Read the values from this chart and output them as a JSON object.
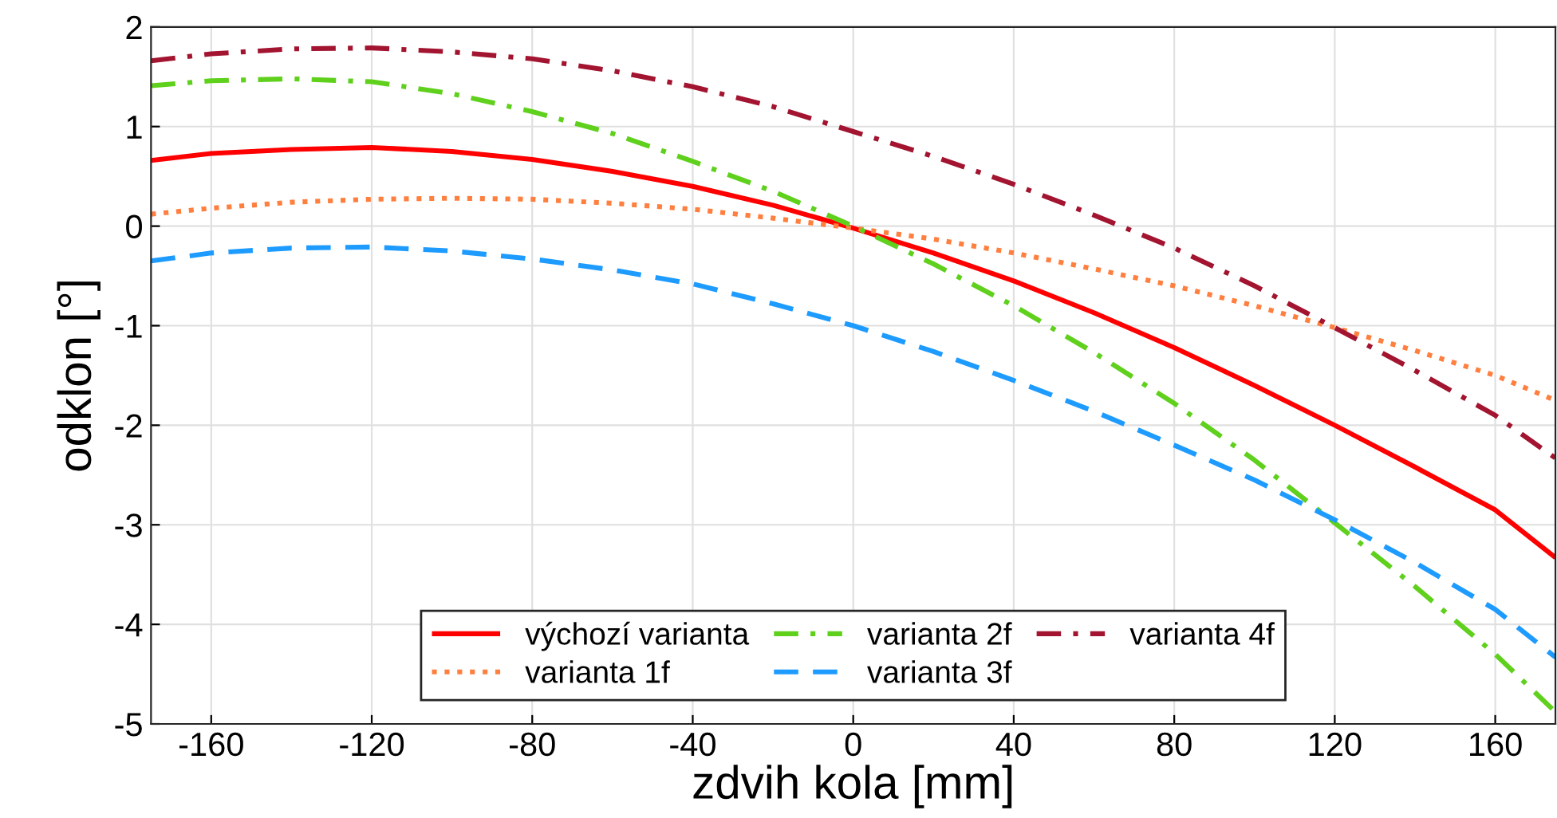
{
  "chart_data": {
    "type": "line",
    "xlabel": "zdvih kola [mm]",
    "ylabel": "odklon [°]",
    "x": [
      -175,
      -160,
      -140,
      -120,
      -100,
      -80,
      -60,
      -40,
      -20,
      0,
      20,
      40,
      60,
      80,
      100,
      120,
      140,
      160,
      175
    ],
    "series": [
      {
        "name": "výchozí varianta",
        "color": "#ff0000",
        "line_style": "solid",
        "values": [
          0.66,
          0.73,
          0.77,
          0.79,
          0.75,
          0.67,
          0.55,
          0.4,
          0.21,
          -0.02,
          -0.27,
          -0.55,
          -0.87,
          -1.22,
          -1.6,
          -2.0,
          -2.42,
          -2.85,
          -3.33
        ]
      },
      {
        "name": "varianta 1f",
        "color": "#ff7f3f",
        "line_style": "dotted",
        "values": [
          0.12,
          0.18,
          0.24,
          0.27,
          0.28,
          0.27,
          0.23,
          0.17,
          0.08,
          -0.02,
          -0.13,
          -0.27,
          -0.43,
          -0.6,
          -0.8,
          -1.02,
          -1.25,
          -1.5,
          -1.75
        ]
      },
      {
        "name": "varianta 2f",
        "color": "#5fd01c",
        "line_style": "dashdot",
        "values": [
          1.41,
          1.46,
          1.48,
          1.45,
          1.33,
          1.15,
          0.93,
          0.65,
          0.35,
          0.0,
          -0.38,
          -0.8,
          -1.27,
          -1.78,
          -2.35,
          -2.98,
          -3.62,
          -4.3,
          -4.88
        ]
      },
      {
        "name": "varianta 3f",
        "color": "#1e9bff",
        "line_style": "dashed",
        "values": [
          -0.35,
          -0.27,
          -0.22,
          -0.21,
          -0.25,
          -0.33,
          -0.44,
          -0.58,
          -0.78,
          -1.0,
          -1.26,
          -1.55,
          -1.86,
          -2.2,
          -2.55,
          -2.95,
          -3.38,
          -3.85,
          -4.33
        ]
      },
      {
        "name": "varianta 4f",
        "color": "#a2142f",
        "line_style": "dashdot",
        "values": [
          1.66,
          1.73,
          1.78,
          1.79,
          1.75,
          1.68,
          1.56,
          1.4,
          1.2,
          0.95,
          0.7,
          0.42,
          0.11,
          -0.22,
          -0.6,
          -1.02,
          -1.45,
          -1.9,
          -2.33
        ]
      }
    ],
    "xlim": [
      -175,
      175
    ],
    "xticks": [
      -160,
      -120,
      -80,
      -40,
      0,
      40,
      80,
      120,
      160
    ],
    "ylim": [
      -5,
      2
    ],
    "yticks": [
      -5,
      -4,
      -3,
      -2,
      -1,
      0,
      1,
      2
    ],
    "grid": true,
    "legend": "bottom",
    "marker": "none"
  }
}
